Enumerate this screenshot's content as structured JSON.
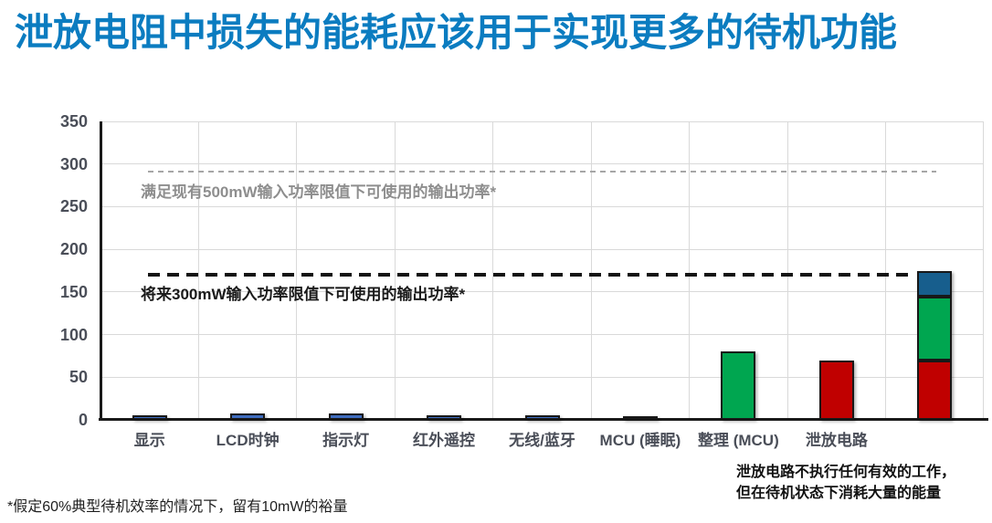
{
  "title": "泄放电阻中损失的能耗应该用于实现更多的待机功能",
  "footnote": "*假定60%典型待机效率的情况下，留有10mW的裕量",
  "annotation": {
    "line1": "泄放电路不执行任何有效的工作，",
    "line2": "但在待机状态下消耗大量的能量"
  },
  "colors": {
    "title": "#0b7cc0",
    "axis_label": "#4a4e58",
    "gridline": "#d9d9d9",
    "axis_line": "#1a1a1a",
    "bar_blue": "#3e6cbf",
    "bar_green": "#00a650",
    "bar_red": "#c00000",
    "bar_dark_blue": "#175e8d",
    "ref_gray": "#a6a6a6",
    "ref_black": "#141414"
  },
  "chart_data": {
    "type": "bar",
    "stacked": true,
    "title": "",
    "xlabel": "",
    "ylabel": "",
    "ylim": [
      0,
      350
    ],
    "ytick_step": 50,
    "grid": true,
    "legend": "none",
    "categories": [
      "显示",
      "LCD时钟",
      "指示灯",
      "红外遥控",
      "无线/蓝牙",
      "MCU (睡眠)",
      "整理 (MCU)",
      "泄放电路",
      ""
    ],
    "bars": [
      {
        "label": "显示",
        "segments": [
          {
            "color": "#3e6cbf",
            "value": 5
          }
        ]
      },
      {
        "label": "LCD时钟",
        "segments": [
          {
            "color": "#3e6cbf",
            "value": 7
          }
        ]
      },
      {
        "label": "指示灯",
        "segments": [
          {
            "color": "#3e6cbf",
            "value": 8
          }
        ]
      },
      {
        "label": "红外遥控",
        "segments": [
          {
            "color": "#3e6cbf",
            "value": 5
          }
        ]
      },
      {
        "label": "无线/蓝牙",
        "segments": [
          {
            "color": "#3e6cbf",
            "value": 5
          }
        ]
      },
      {
        "label": "MCU (睡眠)",
        "segments": [
          {
            "color": "#3e6cbf",
            "value": 3
          }
        ]
      },
      {
        "label": "整理 (MCU)",
        "segments": [
          {
            "color": "#00a650",
            "value": 80
          }
        ]
      },
      {
        "label": "泄放电路",
        "segments": [
          {
            "color": "#c00000",
            "value": 70
          }
        ]
      },
      {
        "label": "",
        "segments": [
          {
            "color": "#c00000",
            "value": 70
          },
          {
            "color": "#00a650",
            "value": 75
          },
          {
            "color": "#175e8d",
            "value": 30
          }
        ]
      }
    ],
    "reference_lines": [
      {
        "value": 290,
        "label": "满足现有500mW输入功率限值下可使用的输出功率*",
        "style": "gray"
      },
      {
        "value": 170,
        "label": "将来300mW输入功率限值下可使用的输出功率*",
        "style": "black"
      }
    ]
  }
}
